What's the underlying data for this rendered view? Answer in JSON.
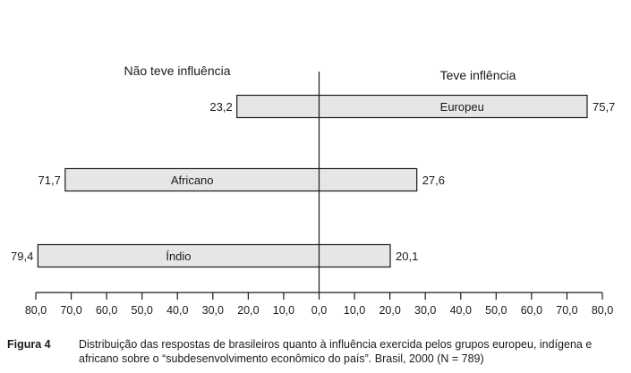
{
  "chart_data": {
    "type": "bar",
    "orientation": "diverging-horizontal",
    "left_label": "Não teve influência",
    "right_label": "Teve inflência",
    "categories": [
      "Europeu",
      "Africano",
      "Índio"
    ],
    "series": [
      {
        "name": "Não teve influência",
        "side": "left",
        "values": [
          23.2,
          71.7,
          79.4
        ],
        "labels": [
          "23,2",
          "71,7",
          "79,4"
        ]
      },
      {
        "name": "Teve inflência",
        "side": "right",
        "values": [
          75.7,
          27.6,
          20.1
        ],
        "labels": [
          "75,7",
          "27,6",
          "20,1"
        ]
      }
    ],
    "category_label_side": [
      "right",
      "left",
      "left"
    ],
    "xlim": [
      -80,
      80
    ],
    "tick_values": [
      -80,
      -70,
      -60,
      -50,
      -40,
      -30,
      -20,
      -10,
      0,
      10,
      20,
      30,
      40,
      50,
      60,
      70,
      80
    ],
    "tick_labels": [
      "80,0",
      "70,0",
      "60,0",
      "50,0",
      "40,0",
      "30,0",
      "20,0",
      "10,0",
      "0,0",
      "10,0",
      "20,0",
      "30,0",
      "40,0",
      "50,0",
      "60,0",
      "70,0",
      "80,0"
    ],
    "grid": false,
    "bar_color": "#e6e6e6"
  },
  "caption": {
    "label": "Figura 4",
    "text": "Distribuição das respostas de brasileiros quanto à influência exercida pelos grupos europeu, indígena e africano sobre o “subdesenvolvimento econômico do país”. Brasil, 2000 (N = 789)"
  }
}
